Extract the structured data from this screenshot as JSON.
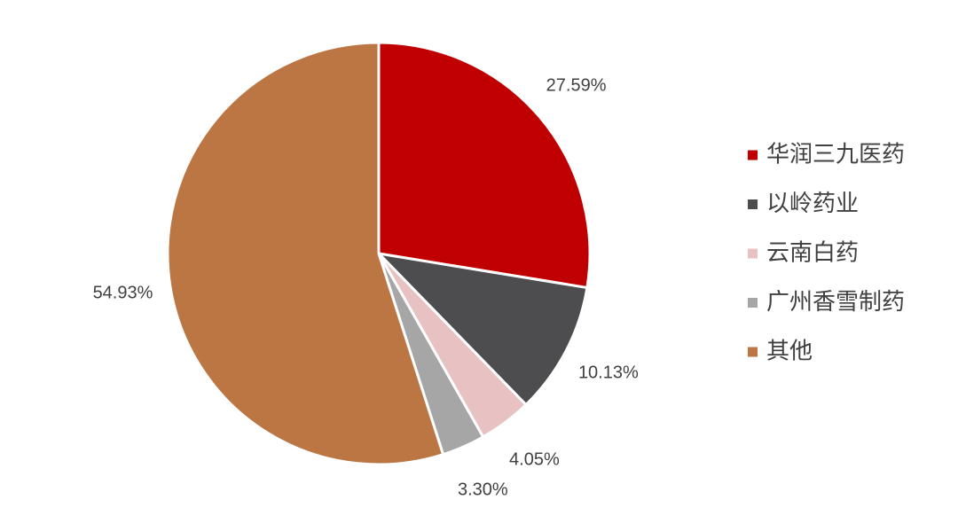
{
  "chart_data": {
    "type": "pie",
    "categories": [
      "华润三九医药",
      "以岭药业",
      "云南白药",
      "广州香雪制药",
      "其他"
    ],
    "values": [
      27.59,
      10.13,
      4.05,
      3.3,
      54.93
    ],
    "value_labels": [
      "27.59%",
      "10.13%",
      "4.05%",
      "3.30%",
      "54.93%"
    ],
    "colors": [
      "#c00000",
      "#4d4d4f",
      "#e8c1c3",
      "#a6a6a6",
      "#bb7644"
    ],
    "legend": "right"
  }
}
